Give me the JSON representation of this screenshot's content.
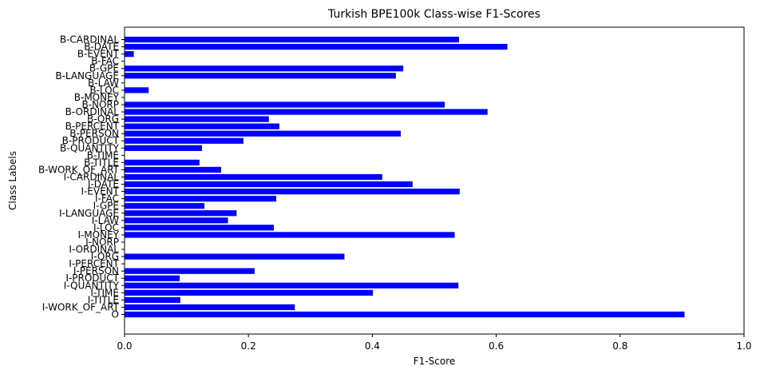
{
  "chart_data": {
    "type": "bar",
    "orientation": "horizontal",
    "title": "Turkish BPE100k Class-wise F1-Scores",
    "xlabel": "F1-Score",
    "ylabel": "Class Labels",
    "xlim": [
      0,
      1.0
    ],
    "xticks": [
      "0.0",
      "0.2",
      "0.4",
      "0.6",
      "0.8",
      "1.0"
    ],
    "grid": false,
    "bar_color": "#0000ff",
    "categories": [
      "B-CARDINAL",
      "B-DATE",
      "B-EVENT",
      "B-FAC",
      "B-GPE",
      "B-LANGUAGE",
      "B-LAW",
      "B-LOC",
      "B-MONEY",
      "B-NORP",
      "B-ORDINAL",
      "B-ORG",
      "B-PERCENT",
      "B-PERSON",
      "B-PRODUCT",
      "B-QUANTITY",
      "B-TIME",
      "B-TITLE",
      "B-WORK_OF_ART",
      "I-CARDINAL",
      "I-DATE",
      "I-EVENT",
      "I-FAC",
      "I-GPE",
      "I-LANGUAGE",
      "I-LAW",
      "I-LOC",
      "I-MONEY",
      "I-NORP",
      "I-ORDINAL",
      "I-ORG",
      "I-PERCENT",
      "I-PERSON",
      "I-PRODUCT",
      "I-QUANTITY",
      "I-TIME",
      "I-TITLE",
      "I-WORK_OF_ART",
      "O"
    ],
    "values": [
      0.54,
      0.618,
      0.015,
      0.0,
      0.45,
      0.438,
      0.0,
      0.039,
      0.0,
      0.517,
      0.586,
      0.233,
      0.25,
      0.446,
      0.192,
      0.125,
      0.0,
      0.121,
      0.156,
      0.416,
      0.465,
      0.541,
      0.245,
      0.129,
      0.181,
      0.167,
      0.241,
      0.533,
      0.0,
      0.0,
      0.355,
      0.0,
      0.21,
      0.089,
      0.539,
      0.401,
      0.09,
      0.275,
      0.904
    ]
  }
}
